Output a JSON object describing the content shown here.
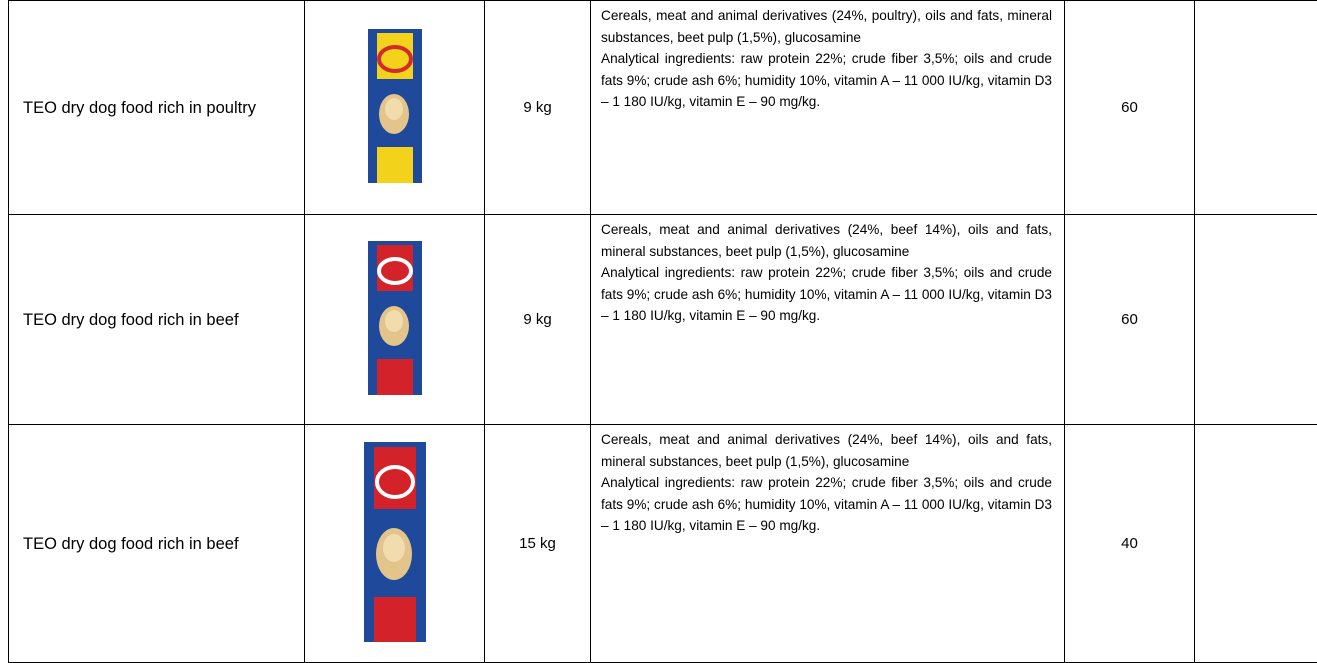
{
  "table": {
    "rows": [
      {
        "name": "TEO dry dog food rich in poultry",
        "weight": "9 kg",
        "composition": "Cereals, meat and animal derivatives (24%, poultry), oils and fats, mineral substances, beet pulp (1,5%), glucosamine",
        "analytical": "Analytical ingredients: raw protein 22%; crude fiber 3,5%; oils and crude fats 9%; crude ash 6%; humidity 10%, vitamin A – 11 000 IU/kg, vitamin D3 – 1 180 IU/kg, vitamin E – 90 mg/kg.",
        "quantity": "60"
      },
      {
        "name": "TEO dry dog food rich in beef",
        "weight": "9 kg",
        "composition": "Cereals, meat and animal derivatives (24%, beef 14%), oils and fats, mineral substances, beet pulp (1,5%), glucosamine",
        "analytical": "Analytical ingredients: raw protein 22%; crude fiber 3,5%; oils and crude fats 9%; crude ash 6%; humidity 10%, vitamin A – 11 000 IU/kg, vitamin D3 – 1 180 IU/kg, vitamin E – 90 mg/kg.",
        "quantity": "60"
      },
      {
        "name": "TEO dry dog food rich in beef",
        "weight": "15 kg",
        "composition": "Cereals, meat and animal derivatives (24%, beef 14%), oils and fats, mineral substances, beet pulp (1,5%), glucosamine",
        "analytical": "Analytical ingredients: raw protein 22%; crude fiber 3,5%; oils and crude fats 9%; crude ash 6%; humidity 10%, vitamin A – 11 000 IU/kg, vitamin D3 – 1 180 IU/kg, vitamin E – 90 mg/kg.",
        "quantity": "40"
      }
    ]
  }
}
